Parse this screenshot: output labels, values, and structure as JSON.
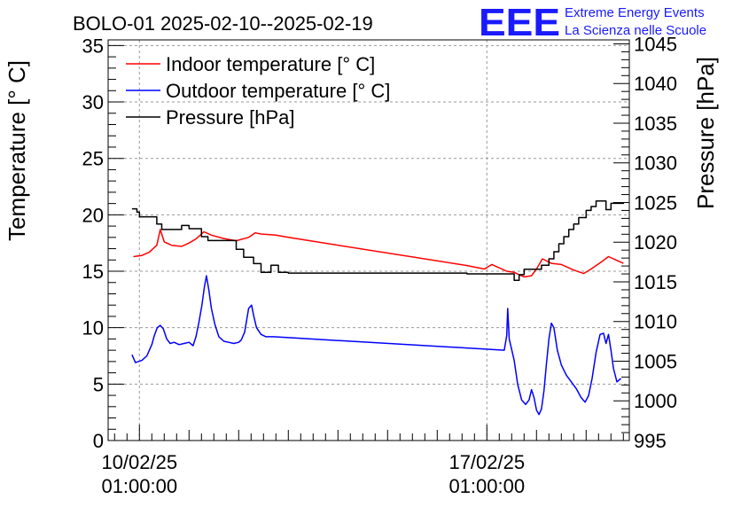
{
  "chart_data": {
    "type": "line",
    "title": "BOLO-01 2025-02-10--2025-02-19",
    "ylabel": "Temperature [° C]",
    "y2label": "Pressure [hPa]",
    "ylim": [
      0,
      35.5
    ],
    "y2lim": [
      995,
      1045.5
    ],
    "yticks": [
      0,
      5,
      10,
      15,
      20,
      25,
      30,
      35
    ],
    "y2ticks": [
      995,
      1000,
      1005,
      1010,
      1015,
      1020,
      1025,
      1030,
      1035,
      1040,
      1045
    ],
    "x_unit": "days since 10/02/25 01:00:00",
    "xlim": [
      -0.63,
      9.87
    ],
    "xticks": [
      {
        "x": 0,
        "date": "10/02/25",
        "time": "01:00:00"
      },
      {
        "x": 7,
        "date": "17/02/25",
        "time": "01:00:00"
      }
    ],
    "grid": true,
    "legend_position": "top-left",
    "series": [
      {
        "name": "Indoor temperature [° C]",
        "color": "#ff0000",
        "axis": "left",
        "points": [
          [
            -0.12,
            16.3
          ],
          [
            0.05,
            16.4
          ],
          [
            0.2,
            16.7
          ],
          [
            0.35,
            17.3
          ],
          [
            0.42,
            18.7
          ],
          [
            0.5,
            17.6
          ],
          [
            0.65,
            17.3
          ],
          [
            0.85,
            17.2
          ],
          [
            1.0,
            17.5
          ],
          [
            1.15,
            17.9
          ],
          [
            1.3,
            18.5
          ],
          [
            1.45,
            18.2
          ],
          [
            1.7,
            17.9
          ],
          [
            1.95,
            17.7
          ],
          [
            2.2,
            18.0
          ],
          [
            2.33,
            18.4
          ],
          [
            2.45,
            18.3
          ],
          [
            2.75,
            18.2
          ],
          [
            3.0,
            18.0
          ],
          [
            6.6,
            15.5
          ],
          [
            6.95,
            15.2
          ],
          [
            7.1,
            15.6
          ],
          [
            7.25,
            15.3
          ],
          [
            7.4,
            15.0
          ],
          [
            7.55,
            14.9
          ],
          [
            7.75,
            14.5
          ],
          [
            7.9,
            14.6
          ],
          [
            8.0,
            15.2
          ],
          [
            8.12,
            16.1
          ],
          [
            8.3,
            15.7
          ],
          [
            8.5,
            15.6
          ],
          [
            8.75,
            15.1
          ],
          [
            8.95,
            14.8
          ],
          [
            9.1,
            15.2
          ],
          [
            9.3,
            15.8
          ],
          [
            9.45,
            16.3
          ],
          [
            9.6,
            16.0
          ],
          [
            9.75,
            15.7
          ]
        ]
      },
      {
        "name": "Outdoor temperature [° C]",
        "color": "#0000ff",
        "axis": "left",
        "points": [
          [
            -0.15,
            7.6
          ],
          [
            -0.08,
            6.9
          ],
          [
            0.05,
            7.1
          ],
          [
            0.15,
            7.5
          ],
          [
            0.2,
            8.0
          ],
          [
            0.25,
            8.5
          ],
          [
            0.3,
            9.3
          ],
          [
            0.36,
            10.0
          ],
          [
            0.42,
            10.2
          ],
          [
            0.48,
            9.9
          ],
          [
            0.55,
            9.0
          ],
          [
            0.62,
            8.6
          ],
          [
            0.7,
            8.7
          ],
          [
            0.8,
            8.5
          ],
          [
            0.9,
            8.6
          ],
          [
            1.0,
            8.7
          ],
          [
            1.08,
            8.4
          ],
          [
            1.14,
            9.2
          ],
          [
            1.2,
            10.5
          ],
          [
            1.26,
            12.0
          ],
          [
            1.31,
            13.6
          ],
          [
            1.35,
            14.6
          ],
          [
            1.4,
            13.3
          ],
          [
            1.45,
            11.7
          ],
          [
            1.52,
            10.3
          ],
          [
            1.6,
            9.2
          ],
          [
            1.7,
            8.8
          ],
          [
            1.8,
            8.7
          ],
          [
            1.9,
            8.6
          ],
          [
            2.0,
            8.7
          ],
          [
            2.05,
            8.9
          ],
          [
            2.12,
            9.6
          ],
          [
            2.2,
            11.7
          ],
          [
            2.26,
            12.0
          ],
          [
            2.3,
            11.1
          ],
          [
            2.36,
            10.0
          ],
          [
            2.45,
            9.4
          ],
          [
            2.55,
            9.2
          ],
          [
            2.7,
            9.2
          ],
          [
            7.35,
            8.0
          ],
          [
            7.4,
            9.3
          ],
          [
            7.42,
            11.7
          ],
          [
            7.45,
            9.0
          ],
          [
            7.55,
            7.1
          ],
          [
            7.62,
            5.0
          ],
          [
            7.7,
            3.6
          ],
          [
            7.78,
            3.2
          ],
          [
            7.85,
            3.6
          ],
          [
            7.9,
            4.5
          ],
          [
            7.95,
            3.8
          ],
          [
            8.0,
            2.7
          ],
          [
            8.05,
            2.3
          ],
          [
            8.1,
            2.8
          ],
          [
            8.15,
            4.4
          ],
          [
            8.2,
            6.8
          ],
          [
            8.25,
            9.0
          ],
          [
            8.3,
            10.4
          ],
          [
            8.35,
            10.0
          ],
          [
            8.42,
            8.0
          ],
          [
            8.5,
            6.7
          ],
          [
            8.6,
            5.8
          ],
          [
            8.7,
            5.2
          ],
          [
            8.8,
            4.6
          ],
          [
            8.9,
            3.8
          ],
          [
            8.98,
            3.4
          ],
          [
            9.05,
            4.0
          ],
          [
            9.12,
            5.5
          ],
          [
            9.2,
            7.8
          ],
          [
            9.28,
            9.4
          ],
          [
            9.35,
            9.5
          ],
          [
            9.4,
            8.6
          ],
          [
            9.45,
            9.4
          ],
          [
            9.5,
            8.0
          ],
          [
            9.55,
            6.4
          ],
          [
            9.62,
            5.2
          ],
          [
            9.7,
            5.5
          ]
        ]
      },
      {
        "name": "Pressure [hPa]",
        "color": "#000000",
        "axis": "right",
        "step": true,
        "points": [
          [
            -0.15,
            1024.2
          ],
          [
            -0.05,
            1023.8
          ],
          [
            0.0,
            1023.2
          ],
          [
            0.35,
            1022.3
          ],
          [
            0.45,
            1021.6
          ],
          [
            0.85,
            1022.1
          ],
          [
            1.0,
            1021.7
          ],
          [
            1.25,
            1020.7
          ],
          [
            1.38,
            1020.2
          ],
          [
            1.95,
            1019.1
          ],
          [
            2.1,
            1018.1
          ],
          [
            2.3,
            1017.3
          ],
          [
            2.45,
            1016.2
          ],
          [
            2.65,
            1017.1
          ],
          [
            2.8,
            1016.2
          ],
          [
            3.0,
            1016.1
          ],
          [
            6.6,
            1016.0
          ],
          [
            7.45,
            1016.0
          ],
          [
            7.55,
            1015.2
          ],
          [
            7.65,
            1015.9
          ],
          [
            7.75,
            1016.6
          ],
          [
            8.0,
            1016.6
          ],
          [
            8.1,
            1017.1
          ],
          [
            8.25,
            1017.9
          ],
          [
            8.35,
            1018.8
          ],
          [
            8.45,
            1019.8
          ],
          [
            8.55,
            1020.7
          ],
          [
            8.65,
            1021.6
          ],
          [
            8.75,
            1022.3
          ],
          [
            8.85,
            1023.1
          ],
          [
            9.0,
            1024.0
          ],
          [
            9.1,
            1024.5
          ],
          [
            9.2,
            1025.2
          ],
          [
            9.4,
            1024.1
          ],
          [
            9.5,
            1024.9
          ],
          [
            9.75,
            1025.0
          ]
        ]
      }
    ]
  },
  "logo": {
    "text": "EEE",
    "line1": "Extreme Energy Events",
    "line2": "La Scienza nelle Scuole",
    "color": "#1a1aff"
  }
}
